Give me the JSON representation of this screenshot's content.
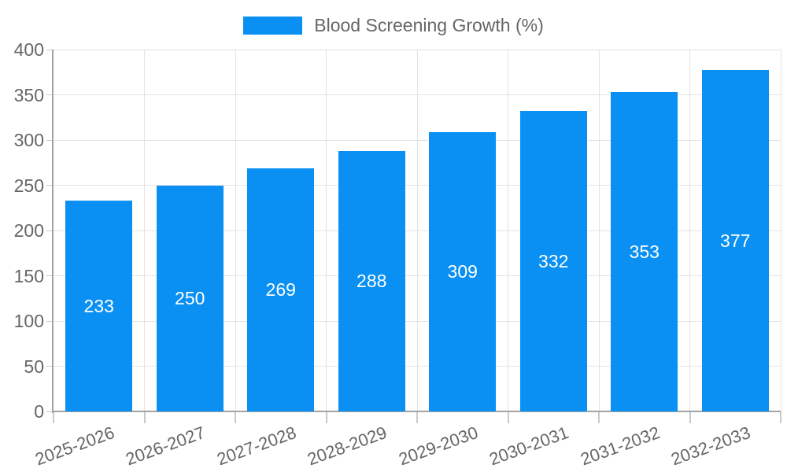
{
  "chart_data": {
    "type": "bar",
    "title": "Blood Screening Growth (%)",
    "legend": {
      "position": "top",
      "label": "Blood Screening Growth (%)"
    },
    "categories": [
      "2025-2026",
      "2026-2027",
      "2027-2028",
      "2028-2029",
      "2029-2030",
      "2030-2031",
      "2031-2032",
      "2032-2033"
    ],
    "values": [
      233,
      250,
      269,
      288,
      309,
      332,
      353,
      377
    ],
    "value_labels": [
      "233",
      "250",
      "269",
      "288",
      "309",
      "332",
      "353",
      "377"
    ],
    "xlabel": "",
    "ylabel": "",
    "ylim": [
      0,
      400
    ],
    "ytick_step": 50,
    "yticks": [
      0,
      50,
      100,
      150,
      200,
      250,
      300,
      350,
      400
    ],
    "grid": true,
    "bar_color": "#0a90f2",
    "value_label_color": "#ffffff",
    "axis_text_color": "#666666",
    "gridline_color": "#e3e3e3",
    "tick_color": "#c9c9c9",
    "axis_line_color": "#a3a3a3",
    "bar_width_fraction": 0.74,
    "xlabel_rotation_deg": -20
  }
}
